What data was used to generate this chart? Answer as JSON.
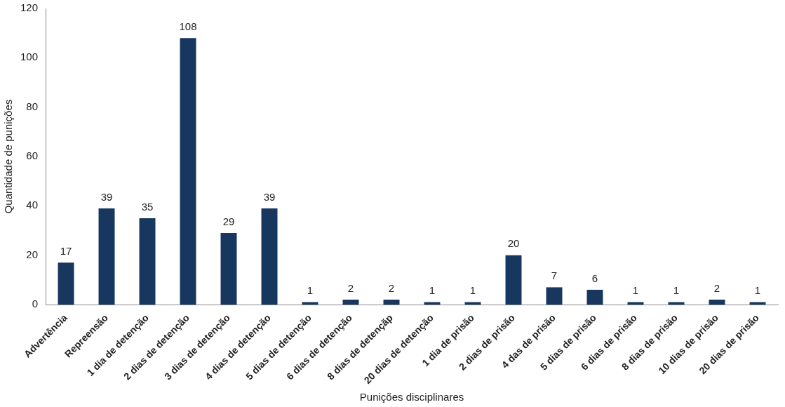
{
  "chart_data": {
    "type": "bar",
    "xlabel": "Punições disciplinares",
    "ylabel": "Quantidade de punições",
    "categories": [
      "Advertência",
      "Repreensão",
      "1 dia de detenção",
      "2 dias de detenção",
      "3 dias de detenção",
      "4 dias de detenção",
      "5 dias de detenção",
      "6 dias de detenção",
      "8 dias de detençãp",
      "20 dias de detenção",
      "1 dia de prisão",
      "2 dias de prisão",
      "4 das de prisão",
      "5 dias de prisão",
      "6 dias de prisão",
      "8 dias de prisão",
      "10 dias de prisão",
      "20 dias de prisão"
    ],
    "values": [
      17,
      39,
      35,
      108,
      29,
      39,
      1,
      2,
      2,
      1,
      1,
      20,
      7,
      6,
      1,
      1,
      2,
      1
    ],
    "color": "#17375e",
    "ylim": [
      0,
      120
    ],
    "yticks": [
      0,
      20,
      40,
      60,
      80,
      100,
      120
    ],
    "grid": false,
    "legend": false,
    "data_labels": true
  }
}
